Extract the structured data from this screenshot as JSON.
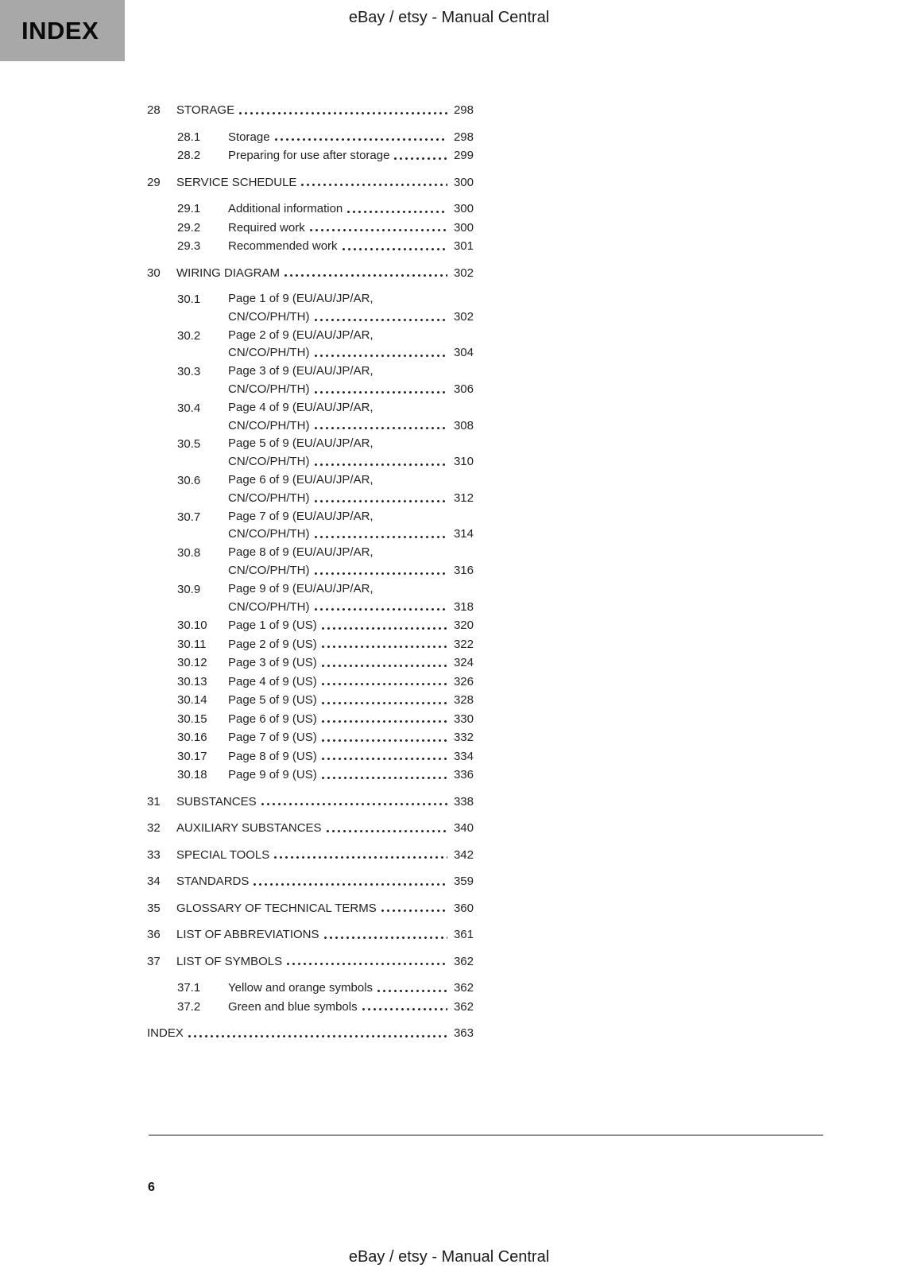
{
  "header": {
    "tab_label": "INDEX",
    "title": "eBay / etsy - Manual Central"
  },
  "footer": {
    "title": "eBay / etsy - Manual Central",
    "page_number": "6"
  },
  "colors": {
    "index_tab_bg": "#a8a8a8",
    "divider": "#8d8d8d"
  },
  "toc": {
    "entries": [
      {
        "level": "chapter",
        "num": "28",
        "title": "STORAGE",
        "page": "298"
      },
      {
        "level": "sub",
        "num": "28.1",
        "title": "Storage",
        "page": "298"
      },
      {
        "level": "sub",
        "num": "28.2",
        "title": "Preparing for use after storage",
        "page": "299"
      },
      {
        "level": "chapter",
        "num": "29",
        "title": "SERVICE SCHEDULE",
        "page": "300"
      },
      {
        "level": "sub",
        "num": "29.1",
        "title": "Additional information",
        "page": "300"
      },
      {
        "level": "sub",
        "num": "29.2",
        "title": "Required work",
        "page": "300"
      },
      {
        "level": "sub",
        "num": "29.3",
        "title": "Recommended work",
        "page": "301"
      },
      {
        "level": "chapter",
        "num": "30",
        "title": "WIRING DIAGRAM",
        "page": "302"
      },
      {
        "level": "sub",
        "num": "30.1",
        "title": "Page 1 of 9 (EU/AU/JP/AR,",
        "wrap": "CN/CO/PH/TH)",
        "page": "302"
      },
      {
        "level": "sub",
        "num": "30.2",
        "title": "Page 2 of 9 (EU/AU/JP/AR,",
        "wrap": "CN/CO/PH/TH)",
        "page": "304"
      },
      {
        "level": "sub",
        "num": "30.3",
        "title": "Page 3 of 9 (EU/AU/JP/AR,",
        "wrap": "CN/CO/PH/TH)",
        "page": "306"
      },
      {
        "level": "sub",
        "num": "30.4",
        "title": "Page 4 of 9 (EU/AU/JP/AR,",
        "wrap": "CN/CO/PH/TH)",
        "page": "308"
      },
      {
        "level": "sub",
        "num": "30.5",
        "title": "Page 5 of 9 (EU/AU/JP/AR,",
        "wrap": "CN/CO/PH/TH)",
        "page": "310"
      },
      {
        "level": "sub",
        "num": "30.6",
        "title": "Page 6 of 9 (EU/AU/JP/AR,",
        "wrap": "CN/CO/PH/TH)",
        "page": "312"
      },
      {
        "level": "sub",
        "num": "30.7",
        "title": "Page 7 of 9 (EU/AU/JP/AR,",
        "wrap": "CN/CO/PH/TH)",
        "page": "314"
      },
      {
        "level": "sub",
        "num": "30.8",
        "title": "Page 8 of 9 (EU/AU/JP/AR,",
        "wrap": "CN/CO/PH/TH)",
        "page": "316"
      },
      {
        "level": "sub",
        "num": "30.9",
        "title": "Page 9 of 9 (EU/AU/JP/AR,",
        "wrap": "CN/CO/PH/TH)",
        "page": "318"
      },
      {
        "level": "sub",
        "num": "30.10",
        "title": "Page 1 of 9 (US)",
        "page": "320"
      },
      {
        "level": "sub",
        "num": "30.11",
        "title": "Page 2 of 9 (US)",
        "page": "322"
      },
      {
        "level": "sub",
        "num": "30.12",
        "title": "Page 3 of 9 (US)",
        "page": "324"
      },
      {
        "level": "sub",
        "num": "30.13",
        "title": "Page 4 of 9 (US)",
        "page": "326"
      },
      {
        "level": "sub",
        "num": "30.14",
        "title": "Page 5 of 9 (US)",
        "page": "328"
      },
      {
        "level": "sub",
        "num": "30.15",
        "title": "Page 6 of 9 (US)",
        "page": "330"
      },
      {
        "level": "sub",
        "num": "30.16",
        "title": "Page 7 of 9 (US)",
        "page": "332"
      },
      {
        "level": "sub",
        "num": "30.17",
        "title": "Page 8 of 9 (US)",
        "page": "334"
      },
      {
        "level": "sub",
        "num": "30.18",
        "title": "Page 9 of 9 (US)",
        "page": "336"
      },
      {
        "level": "chapter",
        "num": "31",
        "title": "SUBSTANCES",
        "page": "338"
      },
      {
        "level": "chapter",
        "num": "32",
        "title": "AUXILIARY SUBSTANCES",
        "page": "340"
      },
      {
        "level": "chapter",
        "num": "33",
        "title": "SPECIAL TOOLS",
        "page": "342"
      },
      {
        "level": "chapter",
        "num": "34",
        "title": "STANDARDS",
        "page": "359"
      },
      {
        "level": "chapter",
        "num": "35",
        "title": "GLOSSARY OF TECHNICAL TERMS",
        "page": "360"
      },
      {
        "level": "chapter",
        "num": "36",
        "title": "LIST OF ABBREVIATIONS",
        "page": "361"
      },
      {
        "level": "chapter",
        "num": "37",
        "title": "LIST OF SYMBOLS",
        "page": "362"
      },
      {
        "level": "sub",
        "num": "37.1",
        "title": "Yellow and orange symbols",
        "page": "362"
      },
      {
        "level": "sub",
        "num": "37.2",
        "title": "Green and blue symbols",
        "page": "362"
      },
      {
        "level": "chapter",
        "num": "",
        "title": "INDEX",
        "page": "363"
      }
    ]
  }
}
